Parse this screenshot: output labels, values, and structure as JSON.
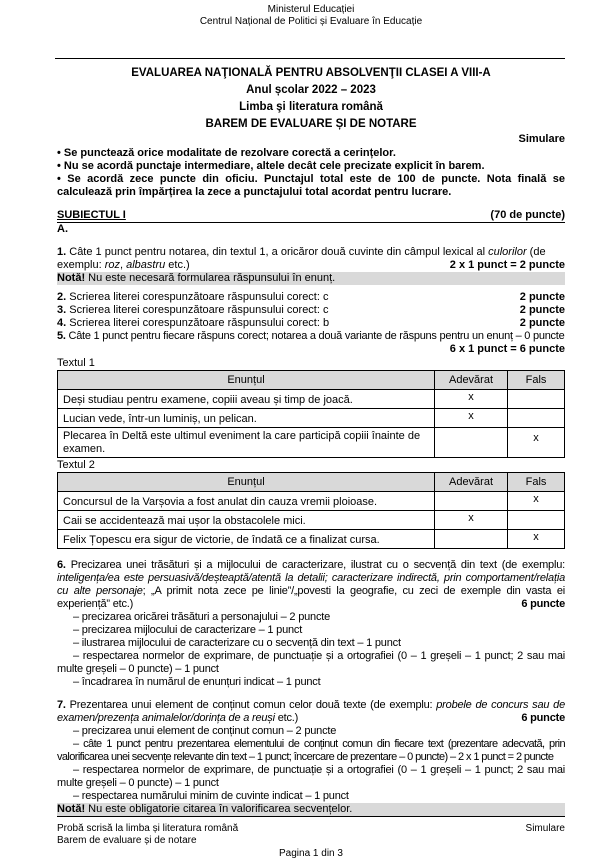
{
  "header": {
    "ministry": "Ministerul Educației",
    "center": "Centrul Național de Politici și Evaluare în Educație"
  },
  "title": {
    "line1": "EVALUAREA NAŢIONALĂ PENTRU ABSOLVENŢII CLASEI A VIII-A",
    "line2": "Anul școlar 2022 – 2023",
    "line3": "Limba şi literatura română",
    "line4": "BAREM DE EVALUARE ȘI DE NOTARE",
    "variant": "Simulare"
  },
  "rules": [
    "•  Se punctează orice modalitate de rezolvare corectă a cerințelor.",
    "•  Nu se acordă punctaje intermediare, altele decât cele precizate explicit în barem.",
    "•  Se acordă zece puncte din oficiu. Punctajul total este de 100 de puncte. Nota finală se calculează prin împărțirea la zece a punctajului total acordat pentru lucrare."
  ],
  "subject": {
    "title": "SUBIECTUL I",
    "points": "(70 de puncte)",
    "section": "A."
  },
  "q1": {
    "num": "1.",
    "text_a": " Câte 1 punct pentru notarea, din textul 1, a oricăror două cuvinte din câmpul lexical al ",
    "em1": "culorilor",
    "text_b": " (de exemplu: ",
    "em2": "roz",
    "text_c": ", ",
    "em3": "albastru",
    "text_d": " etc.)",
    "points": "2 x 1 punct = 2 puncte",
    "note_label": "Notă!",
    "note": " Nu este necesară formularea răspunsului în enunț."
  },
  "q2": {
    "num": "2.",
    "text": " Scrierea literei corespunzătoare răspunsului corect: c",
    "points": "2 puncte"
  },
  "q3": {
    "num": "3.",
    "text": " Scrierea literei corespunzătoare răspunsului corect: c",
    "points": "2 puncte"
  },
  "q4": {
    "num": "4.",
    "text": " Scrierea literei corespunzătoare răspunsului corect: b",
    "points": "2 puncte"
  },
  "q5": {
    "num": "5.",
    "text": " Câte 1 punct pentru fiecare răspuns corect; notarea a două variante de răspuns pentru un enunț – 0 puncte",
    "points": "6 x 1 punct = 6 puncte"
  },
  "tables": [
    {
      "label": "Textul 1",
      "headers": [
        "Enunțul",
        "Adevărat",
        "Fals"
      ],
      "rows": [
        [
          "Deși studiau pentru examene, copiii aveau și timp de joacă.",
          "x",
          ""
        ],
        [
          "Lucian vede, într-un luminiș, un pelican.",
          "x",
          ""
        ],
        [
          "Plecarea în Deltă este ultimul eveniment la care participă copiii înainte de examen.",
          "",
          "x"
        ]
      ]
    },
    {
      "label": "Textul 2",
      "headers": [
        "Enunțul",
        "Adevărat",
        "Fals"
      ],
      "rows": [
        [
          "Concursul de la Varșovia a fost anulat din cauza vremii ploioase.",
          "",
          "x"
        ],
        [
          "Caii se accidentează mai ușor la obstacolele mici.",
          "x",
          ""
        ],
        [
          "Felix Țopescu era sigur de victorie, de îndată ce a finalizat cursa.",
          "",
          "x"
        ]
      ]
    }
  ],
  "q6": {
    "num": "6.",
    "text_a": " Precizarea unei trăsături și a mijlocului de caracterizare, ilustrat cu o secvență din text (de exemplu: ",
    "em": "inteligența/ea este persuasivă/deșteaptă/atentă la detalii; caracterizare indirectă, prin comportament/relația cu alte personaje",
    "text_b": "; „A primit nota zece pe linie”/„povesti la geografie, cu zeci de exemple din vasta ei experiență” etc.)",
    "points": "6 puncte",
    "items": [
      "– precizarea oricărei trăsături a personajului – 2 puncte",
      "– precizarea mijlocului de caracterizare – 1 punct",
      "– ilustrarea mijlocului de caracterizare cu o secvență din text – 1 punct",
      "– respectarea normelor de exprimare, de punctuație și a ortografiei (0 – 1 greșeli – 1 punct; 2 sau mai multe greșeli – 0 puncte) – 1 punct",
      "– încadrarea în numărul de enunțuri indicat – 1 punct"
    ]
  },
  "q7": {
    "num": "7.",
    "text_a": " Prezentarea unui element de conținut comun celor două texte (de exemplu: ",
    "em": "probele de concurs sau de examen/prezența animalelor/dorința de a reuși",
    "text_b": " etc.)",
    "points": "6 puncte",
    "items": [
      "– precizarea unui element de conținut comun – 2 puncte",
      "– câte 1 punct pentru prezentarea elementului de conținut comun din fiecare text (prezentare adecvată, prin valorificarea unei secvențe relevante din text – 1 punct; încercare de prezentare – 0 puncte) – 2 x 1 punct = 2 puncte",
      "– respectarea normelor de exprimare, de punctuație și a ortografiei (0 – 1 greșeli – 1 punct; 2 sau mai multe greșeli – 0 puncte) – 1 punct",
      "– respectarea numărului minim de cuvinte indicat – 1 punct"
    ],
    "note_label": "Notă!",
    "note": " Nu este obligatorie citarea în valorificarea secvențelor."
  },
  "footer": {
    "line1": "Probă scrisă la limba și literatura română",
    "line2": "Barem de evaluare și de notare",
    "variant": "Simulare",
    "page": "Pagina 1 din 3"
  }
}
